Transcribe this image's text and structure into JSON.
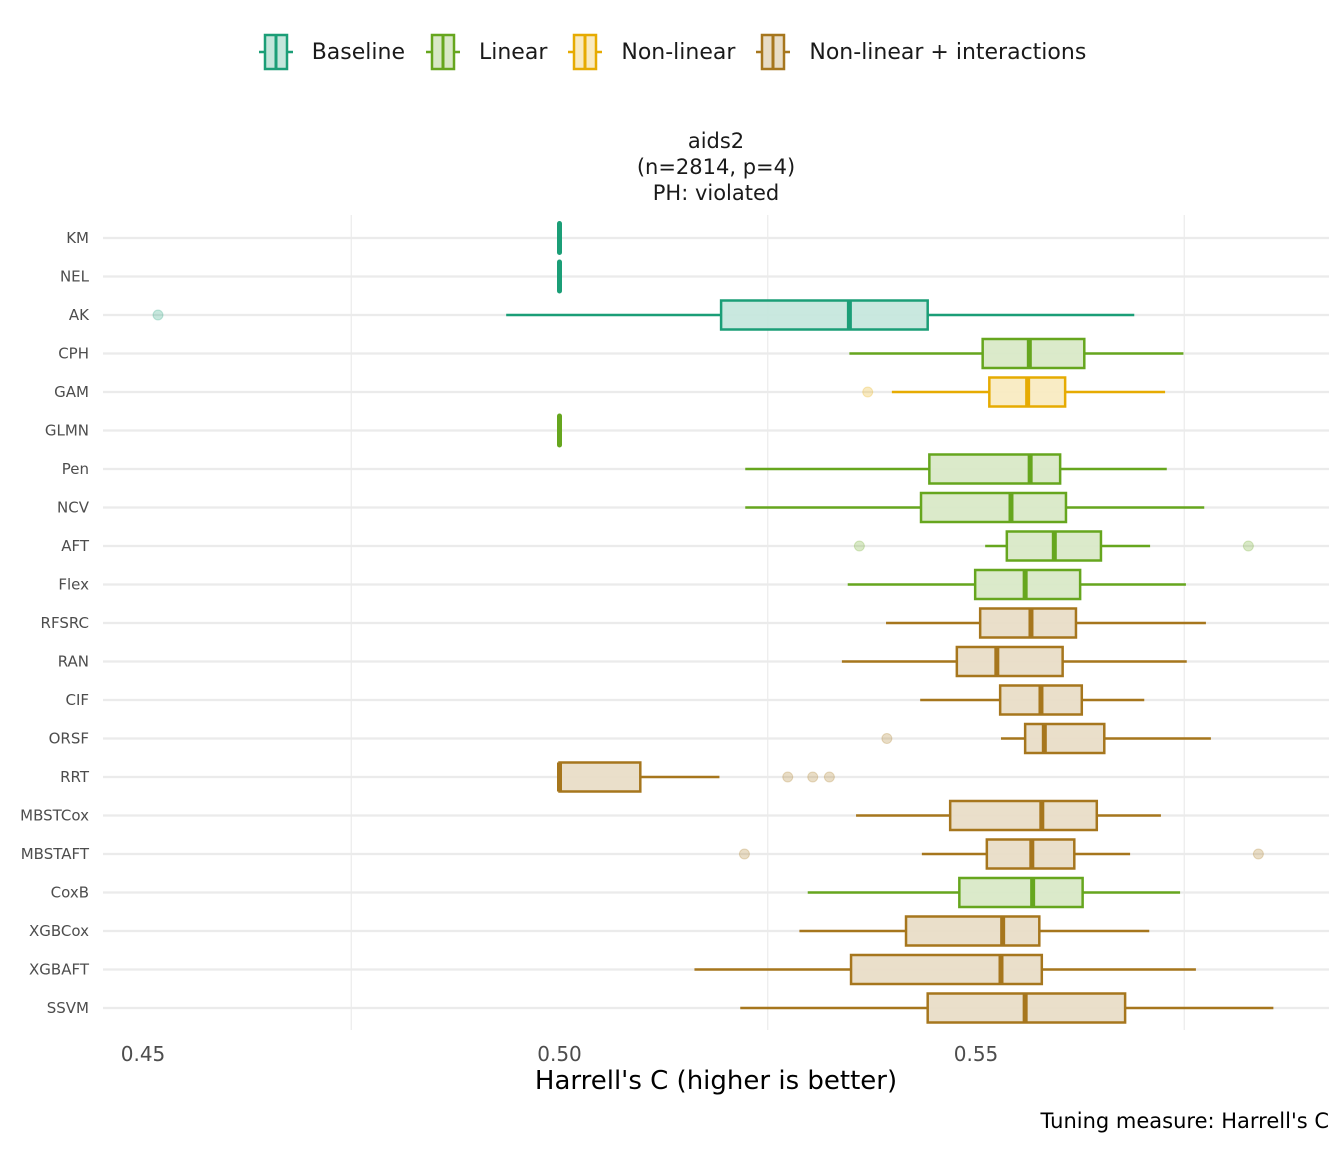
{
  "legend": {
    "items": [
      {
        "label": "Baseline",
        "color": "#1B9E77",
        "fill": "#C4E6DC"
      },
      {
        "label": "Linear",
        "color": "#66A61E",
        "fill": "#D8E8C6"
      },
      {
        "label": "Non-linear",
        "color": "#E6AB02",
        "fill": "#F9EAC0"
      },
      {
        "label": "Non-linear + interactions",
        "color": "#A6761D",
        "fill": "#E8DCC5"
      }
    ]
  },
  "chart_data": {
    "type": "boxplot",
    "orientation": "horizontal",
    "title_lines": [
      "aids2",
      "(n=2814, p=4)",
      "PH: violated"
    ],
    "xlabel": "Harrell's C (higher is better)",
    "ylabel": "",
    "caption": "Tuning measure: Harrell's C",
    "x_ticks": [
      0.45,
      0.5,
      0.55
    ],
    "x_tick_labels": [
      "0.45",
      "0.50",
      "0.55"
    ],
    "x_minor_grid": [
      0.475,
      0.525,
      0.575
    ],
    "xlim": [
      0.4429,
      0.5902
    ],
    "grid": true,
    "legend_position": "top",
    "categories": [
      "KM",
      "NEL",
      "AK",
      "CPH",
      "GAM",
      "GLMN",
      "Pen",
      "NCV",
      "AFT",
      "Flex",
      "RFSRC",
      "RAN",
      "CIF",
      "ORSF",
      "RRT",
      "MBSTCox",
      "MBSTAFT",
      "CoxB",
      "XGBCox",
      "XGBAFT",
      "SSVM"
    ],
    "series": [
      {
        "name": "KM",
        "group": "Baseline",
        "lower_whisker": 0.5,
        "q1": 0.5,
        "median": 0.5,
        "q3": 0.5,
        "upper_whisker": 0.5,
        "outliers": []
      },
      {
        "name": "NEL",
        "group": "Baseline",
        "lower_whisker": 0.5,
        "q1": 0.5,
        "median": 0.5,
        "q3": 0.5,
        "upper_whisker": 0.5,
        "outliers": []
      },
      {
        "name": "AK",
        "group": "Baseline",
        "lower_whisker": 0.4936,
        "q1": 0.5194,
        "median": 0.5348,
        "q3": 0.5442,
        "upper_whisker": 0.569,
        "outliers": [
          0.4518
        ]
      },
      {
        "name": "CPH",
        "group": "Linear",
        "lower_whisker": 0.5348,
        "q1": 0.5508,
        "median": 0.5564,
        "q3": 0.563,
        "upper_whisker": 0.5749,
        "outliers": []
      },
      {
        "name": "GAM",
        "group": "Non-linear",
        "lower_whisker": 0.5399,
        "q1": 0.5516,
        "median": 0.5562,
        "q3": 0.5607,
        "upper_whisker": 0.5727,
        "outliers": [
          0.537
        ]
      },
      {
        "name": "GLMN",
        "group": "Linear",
        "lower_whisker": 0.5,
        "q1": 0.5,
        "median": 0.5,
        "q3": 0.5,
        "upper_whisker": 0.5,
        "outliers": []
      },
      {
        "name": "Pen",
        "group": "Linear",
        "lower_whisker": 0.5223,
        "q1": 0.5444,
        "median": 0.5565,
        "q3": 0.5601,
        "upper_whisker": 0.5729,
        "outliers": []
      },
      {
        "name": "NCV",
        "group": "Linear",
        "lower_whisker": 0.5223,
        "q1": 0.5434,
        "median": 0.5542,
        "q3": 0.5608,
        "upper_whisker": 0.5774,
        "outliers": []
      },
      {
        "name": "AFT",
        "group": "Linear",
        "lower_whisker": 0.5511,
        "q1": 0.5537,
        "median": 0.5594,
        "q3": 0.565,
        "upper_whisker": 0.5709,
        "outliers": [
          0.536,
          0.5827
        ]
      },
      {
        "name": "Flex",
        "group": "Linear",
        "lower_whisker": 0.5346,
        "q1": 0.5499,
        "median": 0.5559,
        "q3": 0.5625,
        "upper_whisker": 0.5752,
        "outliers": []
      },
      {
        "name": "RFSRC",
        "group": "Non-linear + interactions",
        "lower_whisker": 0.5392,
        "q1": 0.5505,
        "median": 0.5566,
        "q3": 0.562,
        "upper_whisker": 0.5776,
        "outliers": []
      },
      {
        "name": "RAN",
        "group": "Non-linear + interactions",
        "lower_whisker": 0.5339,
        "q1": 0.5477,
        "median": 0.5525,
        "q3": 0.5604,
        "upper_whisker": 0.5753,
        "outliers": []
      },
      {
        "name": "CIF",
        "group": "Non-linear + interactions",
        "lower_whisker": 0.5433,
        "q1": 0.5529,
        "median": 0.5578,
        "q3": 0.5627,
        "upper_whisker": 0.5702,
        "outliers": []
      },
      {
        "name": "ORSF",
        "group": "Non-linear + interactions",
        "lower_whisker": 0.553,
        "q1": 0.5559,
        "median": 0.5582,
        "q3": 0.5654,
        "upper_whisker": 0.5782,
        "outliers": [
          0.5393
        ]
      },
      {
        "name": "RRT",
        "group": "Non-linear + interactions",
        "lower_whisker": 0.5,
        "q1": 0.5,
        "median": 0.5,
        "q3": 0.5097,
        "upper_whisker": 0.5192,
        "outliers": [
          0.5274,
          0.5304,
          0.5324
        ]
      },
      {
        "name": "MBSTCox",
        "group": "Non-linear + interactions",
        "lower_whisker": 0.5356,
        "q1": 0.5469,
        "median": 0.5579,
        "q3": 0.5645,
        "upper_whisker": 0.5722,
        "outliers": []
      },
      {
        "name": "MBSTAFT",
        "group": "Non-linear + interactions",
        "lower_whisker": 0.5435,
        "q1": 0.5513,
        "median": 0.5567,
        "q3": 0.5618,
        "upper_whisker": 0.5685,
        "outliers": [
          0.5222,
          0.5839
        ]
      },
      {
        "name": "CoxB",
        "group": "Linear",
        "lower_whisker": 0.5298,
        "q1": 0.548,
        "median": 0.5568,
        "q3": 0.5628,
        "upper_whisker": 0.5745,
        "outliers": []
      },
      {
        "name": "XGBCox",
        "group": "Non-linear + interactions",
        "lower_whisker": 0.5288,
        "q1": 0.5416,
        "median": 0.5532,
        "q3": 0.5576,
        "upper_whisker": 0.5708,
        "outliers": []
      },
      {
        "name": "XGBAFT",
        "group": "Non-linear + interactions",
        "lower_whisker": 0.5162,
        "q1": 0.535,
        "median": 0.553,
        "q3": 0.5579,
        "upper_whisker": 0.5764,
        "outliers": []
      },
      {
        "name": "SSVM",
        "group": "Non-linear + interactions",
        "lower_whisker": 0.5217,
        "q1": 0.5442,
        "median": 0.5559,
        "q3": 0.5679,
        "upper_whisker": 0.5857,
        "outliers": []
      }
    ]
  }
}
